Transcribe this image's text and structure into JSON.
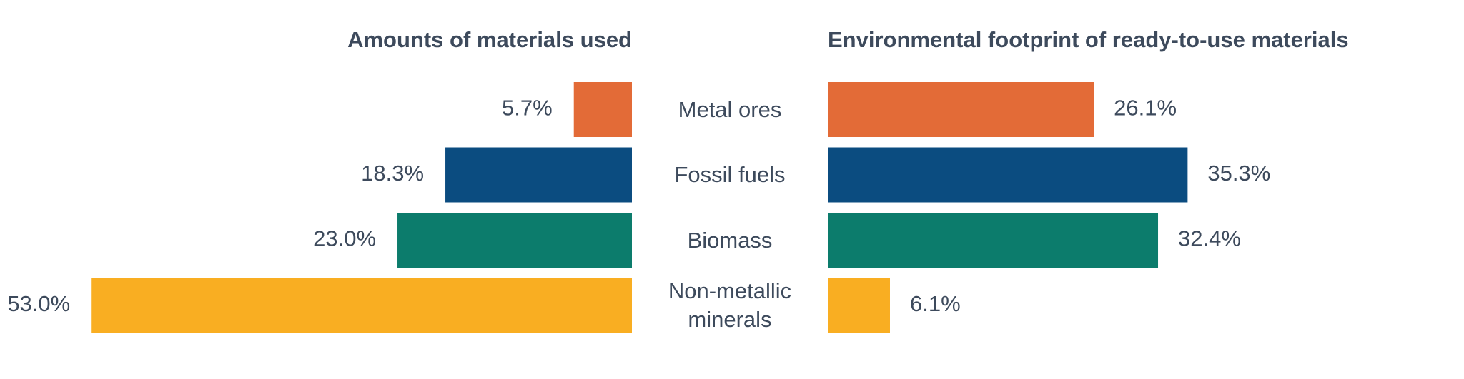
{
  "chart_data": {
    "type": "butterfly_bar",
    "categories": [
      "Metal ores",
      "Fossil fuels",
      "Biomass",
      "Non-metallic minerals"
    ],
    "colors": [
      "#e36b37",
      "#0b4c80",
      "#0c7c6c",
      "#f9ae22"
    ],
    "series": [
      {
        "name": "Amounts of materials used",
        "values": [
          5.7,
          18.3,
          23.0,
          53.0
        ],
        "value_labels": [
          "5.7%",
          "18.3%",
          "23.0%",
          "53.0%"
        ]
      },
      {
        "name": "Environmental footprint of ready-to-use materials",
        "values": [
          26.1,
          35.3,
          32.4,
          6.1
        ],
        "value_labels": [
          "26.1%",
          "35.3%",
          "32.4%",
          "6.1%"
        ]
      }
    ]
  }
}
